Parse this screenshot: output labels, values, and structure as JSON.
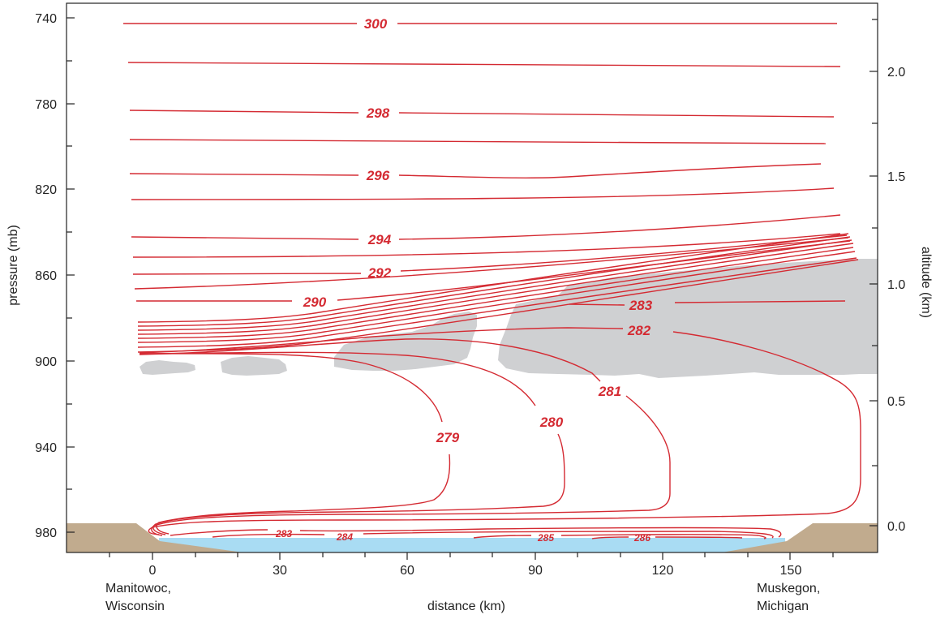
{
  "colors": {
    "isentrope": "#d42a32",
    "cloud": "#cfd0d2",
    "lake": "#a9dcf3",
    "land": "#c1ab8e",
    "axis": "#222222"
  },
  "axes": {
    "left": {
      "title": "pressure (mb)",
      "ticks": [
        "740",
        "780",
        "820",
        "860",
        "900",
        "940",
        "980"
      ]
    },
    "right": {
      "title": "altitude (km)",
      "ticks": [
        "2.0",
        "1.5",
        "1.0",
        "0.5",
        "0.0"
      ]
    },
    "bottom": {
      "title": "distance (km)",
      "ticks": [
        "0",
        "30",
        "60",
        "90",
        "120",
        "150"
      ]
    }
  },
  "places": {
    "left_line1": "Manitowoc,",
    "left_line2": "Wisconsin",
    "right_line1": "Muskegon,",
    "right_line2": "Michigan"
  },
  "contour_labels": {
    "t300": "300",
    "t298": "298",
    "t296": "296",
    "t294": "294",
    "t292": "292",
    "t290": "290",
    "t283_upper": "283",
    "t282": "282",
    "t281": "281",
    "t280": "280",
    "t279": "279",
    "t283_lake": "283",
    "t284": "284",
    "t285": "285",
    "t286": "286"
  }
}
